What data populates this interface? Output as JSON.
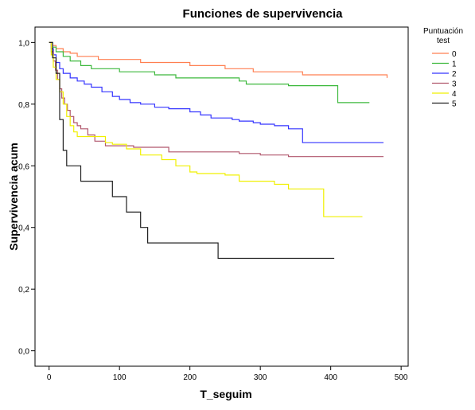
{
  "chart_data": {
    "type": "line",
    "step": true,
    "title": "Funciones de supervivencia",
    "xlabel": "T_seguim",
    "ylabel": "Supervivencia acum",
    "xlim": [
      -20,
      510
    ],
    "ylim": [
      -0.05,
      1.05
    ],
    "x_ticks": [
      0,
      100,
      200,
      300,
      400,
      500
    ],
    "x_tick_labels": [
      "0",
      "100",
      "200",
      "300",
      "400",
      "500"
    ],
    "y_ticks": [
      0.0,
      0.2,
      0.4,
      0.6,
      0.8,
      1.0
    ],
    "y_tick_labels": [
      "0,0",
      "0,2",
      "0,4",
      "0,6",
      "0,8",
      "1,0"
    ],
    "grid": false,
    "legend": {
      "title": "Puntuación test",
      "position": "right"
    },
    "series": [
      {
        "name": "0",
        "color": "#ff7f50",
        "x": [
          0,
          5,
          10,
          20,
          30,
          40,
          70,
          130,
          200,
          250,
          290,
          360,
          480
        ],
        "y": [
          1.0,
          0.99,
          0.98,
          0.97,
          0.965,
          0.955,
          0.945,
          0.935,
          0.925,
          0.915,
          0.905,
          0.895,
          0.885
        ]
      },
      {
        "name": "1",
        "color": "#3cb83c",
        "x": [
          0,
          5,
          10,
          20,
          30,
          45,
          60,
          100,
          150,
          180,
          270,
          280,
          340,
          360,
          390,
          410,
          455
        ],
        "y": [
          1.0,
          0.985,
          0.97,
          0.955,
          0.94,
          0.925,
          0.915,
          0.905,
          0.895,
          0.885,
          0.875,
          0.865,
          0.86,
          0.86,
          0.86,
          0.805,
          0.805
        ]
      },
      {
        "name": "2",
        "color": "#3434ff",
        "x": [
          0,
          3,
          6,
          10,
          15,
          20,
          30,
          40,
          50,
          60,
          75,
          90,
          100,
          115,
          130,
          150,
          170,
          200,
          215,
          230,
          260,
          270,
          290,
          300,
          320,
          340,
          360,
          475
        ],
        "y": [
          1.0,
          0.98,
          0.96,
          0.935,
          0.915,
          0.9,
          0.885,
          0.875,
          0.865,
          0.855,
          0.84,
          0.825,
          0.815,
          0.805,
          0.8,
          0.79,
          0.785,
          0.775,
          0.765,
          0.755,
          0.75,
          0.745,
          0.74,
          0.735,
          0.73,
          0.72,
          0.675,
          0.675
        ]
      },
      {
        "name": "3",
        "color": "#b0566c",
        "x": [
          0,
          3,
          6,
          9,
          12,
          15,
          18,
          22,
          26,
          30,
          35,
          40,
          45,
          55,
          65,
          80,
          90,
          110,
          120,
          170,
          250,
          270,
          300,
          340,
          475
        ],
        "y": [
          1.0,
          0.97,
          0.94,
          0.91,
          0.88,
          0.85,
          0.82,
          0.8,
          0.78,
          0.76,
          0.74,
          0.73,
          0.72,
          0.7,
          0.68,
          0.665,
          0.665,
          0.665,
          0.66,
          0.645,
          0.645,
          0.64,
          0.635,
          0.63,
          0.63
        ]
      },
      {
        "name": "4",
        "color": "#f0f000",
        "x": [
          0,
          3,
          6,
          10,
          15,
          20,
          25,
          30,
          35,
          40,
          50,
          60,
          80,
          90,
          110,
          130,
          160,
          180,
          200,
          210,
          250,
          270,
          320,
          340,
          370,
          380,
          390,
          445
        ],
        "y": [
          1.0,
          0.96,
          0.92,
          0.88,
          0.84,
          0.8,
          0.76,
          0.73,
          0.71,
          0.695,
          0.695,
          0.695,
          0.675,
          0.67,
          0.655,
          0.635,
          0.62,
          0.6,
          0.58,
          0.575,
          0.57,
          0.55,
          0.54,
          0.525,
          0.525,
          0.525,
          0.435,
          0.435
        ]
      },
      {
        "name": "5",
        "color": "#202020",
        "x": [
          0,
          5,
          10,
          15,
          20,
          25,
          45,
          90,
          110,
          120,
          130,
          140,
          180,
          220,
          240,
          405
        ],
        "y": [
          1.0,
          0.95,
          0.9,
          0.75,
          0.65,
          0.6,
          0.55,
          0.5,
          0.45,
          0.45,
          0.4,
          0.35,
          0.35,
          0.35,
          0.3,
          0.3
        ]
      }
    ]
  }
}
